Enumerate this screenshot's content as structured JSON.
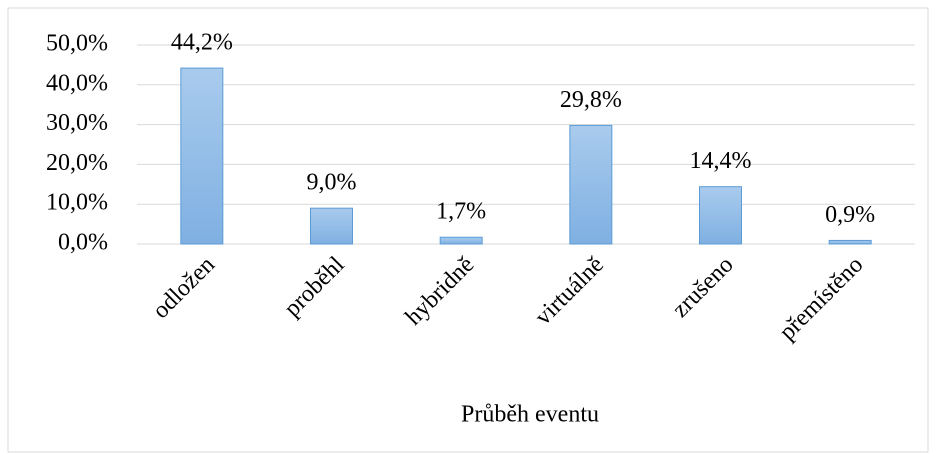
{
  "chart_data": {
    "type": "bar",
    "x_label": "Průběh eventu",
    "categories": [
      "odložen",
      "proběhl",
      "hybridně",
      "virtuálně",
      "zrušeno",
      "přemístěno"
    ],
    "values": [
      44.2,
      9.0,
      1.7,
      29.8,
      14.4,
      0.9
    ],
    "value_labels": [
      "44,2%",
      "9,0%",
      "1,7%",
      "29,8%",
      "14,4%",
      "0,9%"
    ],
    "color": "#9dc3e6",
    "ylim": [
      0,
      50
    ],
    "yticks": [
      {
        "value": 0,
        "label": "0,0%"
      },
      {
        "value": 10,
        "label": "10,0%"
      },
      {
        "value": 20,
        "label": "20,0%"
      },
      {
        "value": 30,
        "label": "30,0%"
      },
      {
        "value": 40,
        "label": "40,0%"
      },
      {
        "value": 50,
        "label": "50,0%"
      }
    ],
    "grid": true
  }
}
